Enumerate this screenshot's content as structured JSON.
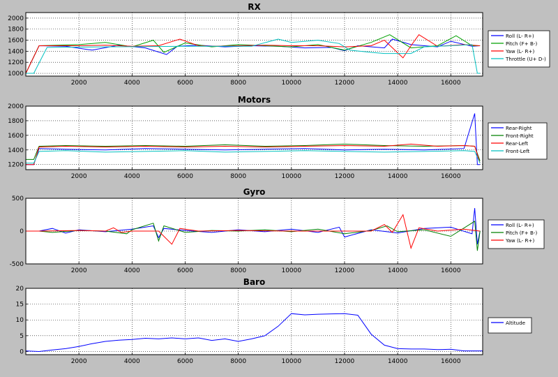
{
  "chart_data": [
    {
      "type": "line",
      "title": "RX",
      "xlim": [
        0,
        17200
      ],
      "ylim": [
        950,
        2100
      ],
      "xticks": [
        2000,
        4000,
        6000,
        8000,
        10000,
        12000,
        14000,
        16000
      ],
      "yticks": [
        1000,
        1200,
        1400,
        1600,
        1800,
        2000
      ],
      "grid": true,
      "legend": "right",
      "series": [
        {
          "name": "Roll (L- R+)",
          "color": "#0000ff",
          "x": [
            0,
            500,
            1500,
            2500,
            3500,
            4500,
            5300,
            5700,
            6500,
            7500,
            8500,
            9500,
            10500,
            11500,
            12000,
            12500,
            13500,
            13800,
            14500,
            15500,
            16000,
            16800,
            17100
          ],
          "y": [
            1000,
            1500,
            1490,
            1420,
            1510,
            1460,
            1340,
            1490,
            1510,
            1480,
            1500,
            1490,
            1460,
            1470,
            1410,
            1500,
            1460,
            1620,
            1520,
            1480,
            1580,
            1490,
            1500
          ]
        },
        {
          "name": "Pitch (F+ B-)",
          "color": "#00a000",
          "x": [
            0,
            500,
            2000,
            3000,
            4000,
            4800,
            5200,
            6000,
            7000,
            8000,
            9000,
            10000,
            11000,
            12000,
            13000,
            13700,
            14500,
            15500,
            16200,
            16800,
            17100
          ],
          "y": [
            1000,
            1500,
            1520,
            1560,
            1480,
            1600,
            1380,
            1550,
            1480,
            1520,
            1500,
            1480,
            1520,
            1420,
            1560,
            1700,
            1460,
            1500,
            1680,
            1500,
            1500
          ]
        },
        {
          "name": "Yaw (L- R+)",
          "color": "#ff0000",
          "x": [
            0,
            500,
            2000,
            3000,
            4000,
            5000,
            5800,
            6500,
            7000,
            8000,
            9000,
            10000,
            11000,
            12000,
            13000,
            13500,
            14200,
            14500,
            14800,
            15500,
            16500,
            17100
          ],
          "y": [
            1000,
            1500,
            1500,
            1510,
            1490,
            1500,
            1620,
            1500,
            1490,
            1500,
            1510,
            1500,
            1500,
            1480,
            1500,
            1600,
            1280,
            1500,
            1700,
            1490,
            1520,
            1500
          ]
        },
        {
          "name": "Throttle (U+ D-)",
          "color": "#00c0c0",
          "x": [
            0,
            300,
            800,
            3000,
            6000,
            8500,
            9500,
            10000,
            11000,
            11800,
            12200,
            13000,
            13500,
            14500,
            15000,
            16000,
            16800,
            17000,
            17100
          ],
          "y": [
            1000,
            1000,
            1470,
            1480,
            1490,
            1490,
            1620,
            1560,
            1600,
            1540,
            1420,
            1380,
            1360,
            1360,
            1480,
            1500,
            1520,
            1000,
            1000
          ]
        }
      ]
    },
    {
      "type": "line",
      "title": "Motors",
      "xlim": [
        0,
        17200
      ],
      "ylim": [
        1130,
        2000
      ],
      "xticks": [
        2000,
        4000,
        6000,
        8000,
        10000,
        12000,
        14000,
        16000
      ],
      "yticks": [
        1200,
        1400,
        1600,
        1800,
        2000
      ],
      "grid": true,
      "legend": "right",
      "series": [
        {
          "name": "Rear-Right",
          "color": "#0000ff",
          "x": [
            0,
            300,
            500,
            1500,
            3000,
            4500,
            6000,
            7500,
            9000,
            10500,
            12000,
            13500,
            15000,
            16500,
            16900,
            17000,
            17100
          ],
          "y": [
            1200,
            1200,
            1420,
            1410,
            1400,
            1420,
            1410,
            1400,
            1410,
            1420,
            1400,
            1410,
            1400,
            1420,
            1900,
            1200,
            1200
          ]
        },
        {
          "name": "Front-Right",
          "color": "#008000",
          "x": [
            0,
            300,
            500,
            1500,
            3000,
            4500,
            6000,
            7500,
            9000,
            10500,
            12000,
            13500,
            15000,
            16500,
            16900,
            17100
          ],
          "y": [
            1270,
            1270,
            1450,
            1460,
            1450,
            1460,
            1450,
            1470,
            1450,
            1460,
            1480,
            1460,
            1450,
            1460,
            1450,
            1250
          ]
        },
        {
          "name": "Rear-Left",
          "color": "#ff0000",
          "x": [
            0,
            300,
            500,
            1500,
            3000,
            4500,
            6000,
            7500,
            9000,
            10500,
            12000,
            13500,
            14500,
            15500,
            16500,
            16900,
            17100
          ],
          "y": [
            1200,
            1200,
            1440,
            1450,
            1440,
            1450,
            1440,
            1450,
            1440,
            1450,
            1460,
            1450,
            1480,
            1450,
            1460,
            1450,
            1220
          ]
        },
        {
          "name": "Front-Left",
          "color": "#00c0c0",
          "x": [
            0,
            300,
            500,
            1500,
            3000,
            4500,
            6000,
            7500,
            9000,
            10500,
            12000,
            13500,
            15000,
            16500,
            16900,
            17100
          ],
          "y": [
            1220,
            1220,
            1380,
            1390,
            1370,
            1380,
            1390,
            1370,
            1380,
            1390,
            1380,
            1370,
            1380,
            1390,
            1380,
            1220
          ]
        }
      ]
    },
    {
      "type": "line",
      "title": "Gyro",
      "xlim": [
        0,
        17200
      ],
      "ylim": [
        -500,
        500
      ],
      "xticks": [
        2000,
        4000,
        6000,
        8000,
        10000,
        12000,
        14000,
        16000
      ],
      "yticks": [
        -500,
        0,
        500
      ],
      "grid": true,
      "legend": "right",
      "series": [
        {
          "name": "Roll (L- R+)",
          "color": "#0000ff",
          "x": [
            0,
            500,
            1000,
            1500,
            2000,
            3000,
            4000,
            4800,
            5000,
            5200,
            6000,
            7000,
            8000,
            9000,
            10000,
            11000,
            11800,
            12000,
            13000,
            14000,
            15000,
            16000,
            16800,
            16900,
            17000,
            17100
          ],
          "y": [
            0,
            0,
            40,
            -30,
            20,
            -10,
            30,
            80,
            -100,
            40,
            10,
            -20,
            20,
            -10,
            30,
            -20,
            60,
            -90,
            20,
            -30,
            40,
            60,
            -40,
            350,
            -200,
            0
          ]
        },
        {
          "name": "Pitch (F+ B-)",
          "color": "#008000",
          "x": [
            0,
            500,
            1000,
            2000,
            3000,
            3800,
            4000,
            4800,
            5000,
            5200,
            6000,
            7000,
            8000,
            9000,
            10000,
            11000,
            12000,
            13000,
            13600,
            14000,
            15000,
            16000,
            16900,
            17000,
            17100
          ],
          "y": [
            0,
            0,
            -20,
            10,
            0,
            -40,
            20,
            120,
            -150,
            80,
            -20,
            10,
            0,
            20,
            -10,
            30,
            -40,
            10,
            80,
            -10,
            20,
            -80,
            150,
            -300,
            0
          ]
        },
        {
          "name": "Yaw (L- R+)",
          "color": "#ff0000",
          "x": [
            0,
            500,
            2000,
            3000,
            3300,
            3600,
            4000,
            5000,
            5500,
            5800,
            6500,
            8000,
            10000,
            12000,
            13000,
            13500,
            13800,
            14200,
            14500,
            14800,
            15500,
            16500,
            17100
          ],
          "y": [
            0,
            0,
            10,
            0,
            50,
            -20,
            0,
            0,
            -200,
            40,
            0,
            10,
            0,
            0,
            0,
            100,
            -20,
            250,
            -260,
            50,
            0,
            30,
            0
          ]
        }
      ]
    },
    {
      "type": "line",
      "title": "Baro",
      "xlim": [
        0,
        17200
      ],
      "ylim": [
        -1,
        20
      ],
      "xticks": [
        2000,
        4000,
        6000,
        8000,
        10000,
        12000,
        14000,
        16000
      ],
      "yticks": [
        0,
        5,
        10,
        15,
        20
      ],
      "grid": true,
      "legend": "right",
      "series": [
        {
          "name": "Altitude",
          "color": "#0000ff",
          "x": [
            0,
            500,
            1000,
            1500,
            2000,
            2500,
            3000,
            3500,
            4000,
            4500,
            5000,
            5500,
            6000,
            6500,
            7000,
            7500,
            8000,
            8500,
            9000,
            9500,
            10000,
            10500,
            11000,
            11500,
            12000,
            12500,
            13000,
            13500,
            14000,
            14500,
            15000,
            15500,
            16000,
            16500,
            17000,
            17200
          ],
          "y": [
            0.2,
            0,
            0.5,
            0.9,
            1.6,
            2.5,
            3.2,
            3.6,
            3.8,
            4.2,
            4.0,
            4.3,
            4.0,
            4.3,
            3.5,
            4.0,
            3.2,
            4.0,
            5.0,
            8.0,
            12.0,
            11.6,
            11.8,
            11.9,
            12.0,
            11.5,
            5.5,
            2.0,
            0.9,
            0.8,
            0.8,
            0.6,
            0.7,
            0.2,
            0.2,
            0.2
          ]
        }
      ]
    }
  ]
}
